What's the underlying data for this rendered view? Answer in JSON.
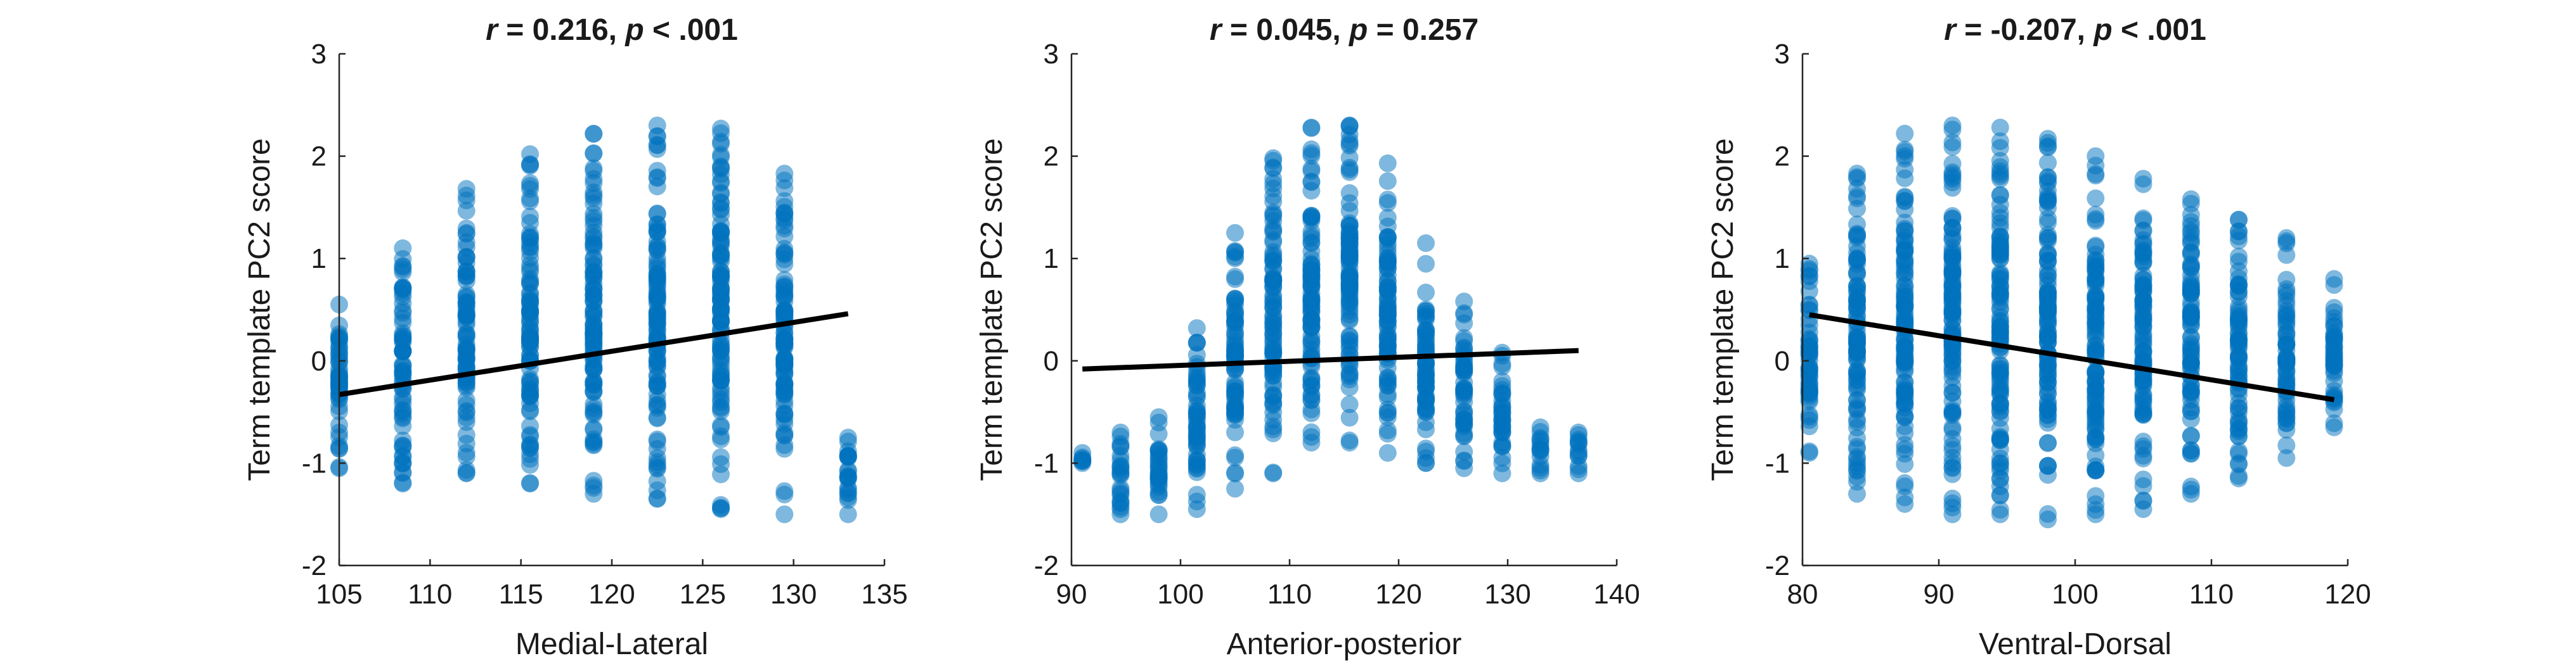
{
  "chart_data": [
    {
      "type": "scatter",
      "title": {
        "r_label": "r",
        "r_text": " = 0.216, ",
        "p_label": "p",
        "p_text": " < .001"
      },
      "xlabel": "Medial-Lateral",
      "ylabel": "Term template PC2 score",
      "xlim": [
        105,
        135
      ],
      "ylim": [
        -2,
        3
      ],
      "xticks": [
        105,
        110,
        115,
        120,
        125,
        130,
        135
      ],
      "yticks": [
        -2,
        -1,
        0,
        1,
        2,
        3
      ],
      "point_color": "#0072BD",
      "line_color": "#000000",
      "regression_line": {
        "x": [
          105,
          133
        ],
        "y": [
          -0.33,
          0.46
        ]
      },
      "columns": [
        {
          "x": 105.0,
          "ymin": -1.05,
          "ymax": 0.55
        },
        {
          "x": 108.5,
          "ymin": -1.2,
          "ymax": 1.1
        },
        {
          "x": 112.0,
          "ymin": -1.1,
          "ymax": 1.68
        },
        {
          "x": 115.5,
          "ymin": -1.2,
          "ymax": 2.02
        },
        {
          "x": 119.0,
          "ymin": -1.3,
          "ymax": 2.22
        },
        {
          "x": 122.5,
          "ymin": -1.35,
          "ymax": 2.3
        },
        {
          "x": 126.0,
          "ymin": -1.45,
          "ymax": 2.27
        },
        {
          "x": 129.5,
          "ymin": -1.5,
          "ymax": 1.83
        },
        {
          "x": 133.0,
          "ymin": -1.5,
          "ymax": -0.75
        }
      ]
    },
    {
      "type": "scatter",
      "title": {
        "r_label": "r",
        "r_text": " = 0.045, ",
        "p_label": "p",
        "p_text": " = 0.257"
      },
      "xlabel": "Anterior-posterior",
      "ylabel": "Term template PC2 score",
      "xlim": [
        90,
        140
      ],
      "ylim": [
        -2,
        3
      ],
      "xticks": [
        90,
        100,
        110,
        120,
        130,
        140
      ],
      "yticks": [
        -2,
        -1,
        0,
        1,
        2,
        3
      ],
      "point_color": "#0072BD",
      "line_color": "#000000",
      "regression_line": {
        "x": [
          91,
          136.5
        ],
        "y": [
          -0.08,
          0.1
        ]
      },
      "columns": [
        {
          "x": 91.0,
          "ymin": -1.0,
          "ymax": -0.9
        },
        {
          "x": 94.5,
          "ymin": -1.5,
          "ymax": -0.7
        },
        {
          "x": 98.0,
          "ymin": -1.5,
          "ymax": -0.55
        },
        {
          "x": 101.5,
          "ymin": -1.45,
          "ymax": 0.32
        },
        {
          "x": 105.0,
          "ymin": -1.25,
          "ymax": 1.25
        },
        {
          "x": 108.5,
          "ymin": -1.1,
          "ymax": 1.98
        },
        {
          "x": 112.0,
          "ymin": -0.8,
          "ymax": 2.28
        },
        {
          "x": 115.5,
          "ymin": -0.8,
          "ymax": 2.3
        },
        {
          "x": 119.0,
          "ymin": -0.9,
          "ymax": 1.93
        },
        {
          "x": 122.5,
          "ymin": -1.0,
          "ymax": 1.15
        },
        {
          "x": 126.0,
          "ymin": -1.05,
          "ymax": 0.58
        },
        {
          "x": 129.5,
          "ymin": -1.1,
          "ymax": 0.08
        },
        {
          "x": 133.0,
          "ymin": -1.1,
          "ymax": -0.65
        },
        {
          "x": 136.5,
          "ymin": -1.1,
          "ymax": -0.7
        }
      ]
    },
    {
      "type": "scatter",
      "title": {
        "r_label": "r",
        "r_text": " = -0.207, ",
        "p_label": "p",
        "p_text": " < .001"
      },
      "xlabel": "Ventral-Dorsal",
      "ylabel": "Term template PC2 score",
      "xlim": [
        80,
        120
      ],
      "ylim": [
        -2,
        3
      ],
      "xticks": [
        80,
        90,
        100,
        110,
        120
      ],
      "yticks": [
        -2,
        -1,
        0,
        1,
        2,
        3
      ],
      "point_color": "#0072BD",
      "line_color": "#000000",
      "regression_line": {
        "x": [
          80.5,
          119
        ],
        "y": [
          0.45,
          -0.38
        ]
      },
      "columns": [
        {
          "x": 80.5,
          "ymin": -0.9,
          "ymax": 0.95
        },
        {
          "x": 84.0,
          "ymin": -1.3,
          "ymax": 1.83
        },
        {
          "x": 87.5,
          "ymin": -1.4,
          "ymax": 2.22
        },
        {
          "x": 91.0,
          "ymin": -1.5,
          "ymax": 2.3
        },
        {
          "x": 94.5,
          "ymin": -1.5,
          "ymax": 2.28
        },
        {
          "x": 98.0,
          "ymin": -1.55,
          "ymax": 2.17
        },
        {
          "x": 101.5,
          "ymin": -1.5,
          "ymax": 2.0
        },
        {
          "x": 105.0,
          "ymin": -1.45,
          "ymax": 1.78
        },
        {
          "x": 108.5,
          "ymin": -1.3,
          "ymax": 1.58
        },
        {
          "x": 112.0,
          "ymin": -1.15,
          "ymax": 1.38
        },
        {
          "x": 115.5,
          "ymin": -0.95,
          "ymax": 1.2
        },
        {
          "x": 119.0,
          "ymin": -0.65,
          "ymax": 0.8
        }
      ]
    }
  ]
}
